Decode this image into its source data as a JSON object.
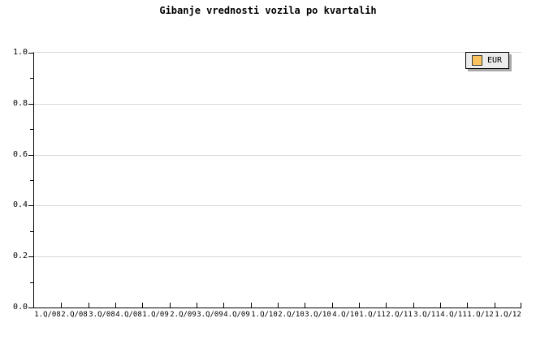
{
  "title": "Gibanje vrednosti vozila po kvartalih",
  "legend": {
    "label": "EUR",
    "position": "top-right",
    "swatch_color": "#f9c25e"
  },
  "colors": {
    "background": "#ffffff",
    "text": "#000000",
    "axis": "#000000",
    "grid": "#d9d9d9",
    "legend_bg": "#ececec",
    "legend_border": "#000000",
    "legend_shadow": "#a9a9a9",
    "swatch_border": "#3a3a3a"
  },
  "chart_data": {
    "type": "line",
    "title": "Gibanje vrednosti vozila po kvartalih",
    "categories": [
      "1.Q/08",
      "2.Q/08",
      "3.Q/08",
      "4.Q/08",
      "1.Q/09",
      "2.Q/09",
      "3.Q/09",
      "4.Q/09",
      "1.Q/10",
      "2.Q/10",
      "3.Q/10",
      "4.Q/10",
      "1.Q/11",
      "2.Q/11",
      "3.Q/11",
      "4.Q/11",
      "1.Q/12",
      "1.Q/12"
    ],
    "series": [
      {
        "name": "EUR",
        "color": "#f9c25e",
        "values": []
      }
    ],
    "xlabel": "",
    "ylabel": "",
    "ylim": [
      0.0,
      1.0
    ],
    "y_major_ticks": [
      1.0,
      0.8,
      0.6,
      0.4,
      0.2,
      0.0
    ],
    "y_tick_labels": [
      "1.0",
      "0.8",
      "0.6",
      "0.4",
      "0.2",
      "0.0"
    ],
    "y_minor_ticks": [
      0.9,
      0.7,
      0.5,
      0.3,
      0.1
    ],
    "grid": "horizontal-major",
    "legend_position": "top-right"
  }
}
